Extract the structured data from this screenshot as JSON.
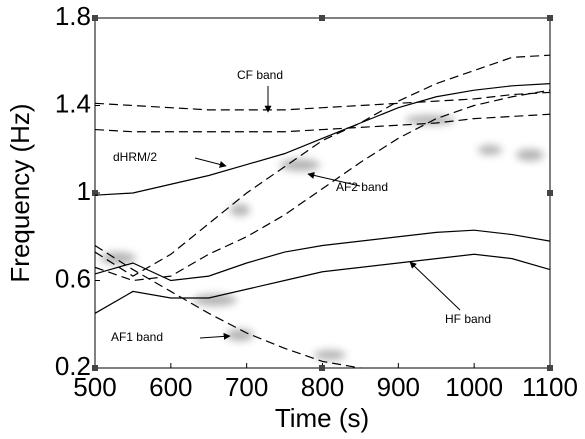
{
  "chart_data": {
    "type": "line",
    "xlabel": "Time (s)",
    "ylabel": "Frequency (Hz)",
    "xlim": [
      500,
      1100
    ],
    "xticks": [
      500,
      600,
      700,
      800,
      900,
      1000,
      1100
    ],
    "ylim": [
      0.2,
      1.8
    ],
    "yticks": [
      0.2,
      0.6,
      1,
      1.4,
      1.8
    ],
    "x": [
      500,
      550,
      600,
      650,
      700,
      750,
      800,
      850,
      900,
      950,
      1000,
      1050,
      1100
    ],
    "series": [
      {
        "color": "#000000",
        "dashed": true,
        "values": [
          1.41,
          1.4,
          1.39,
          1.38,
          1.38,
          1.38,
          1.39,
          1.4,
          1.41,
          1.42,
          1.43,
          1.45,
          1.46
        ]
      },
      {
        "color": "#000000",
        "dashed": true,
        "values": [
          1.29,
          1.28,
          1.28,
          1.28,
          1.28,
          1.28,
          1.29,
          1.3,
          1.31,
          1.32,
          1.34,
          1.35,
          1.36
        ]
      },
      {
        "color": "#000000",
        "dashed": false,
        "values": [
          0.99,
          1.0,
          1.04,
          1.08,
          1.13,
          1.18,
          1.25,
          1.32,
          1.39,
          1.44,
          1.47,
          1.49,
          1.5
        ]
      },
      {
        "color": "#000000",
        "dashed": true,
        "values": [
          0.73,
          0.62,
          0.72,
          0.86,
          1.0,
          1.12,
          1.24,
          1.32,
          1.42,
          1.5,
          1.56,
          1.62,
          1.63
        ]
      },
      {
        "color": "#000000",
        "dashed": true,
        "values": [
          0.66,
          0.6,
          0.62,
          0.72,
          0.8,
          0.9,
          1.02,
          1.14,
          1.25,
          1.34,
          1.4,
          1.44,
          1.47
        ]
      },
      {
        "color": "#000000",
        "dashed": false,
        "values": [
          0.63,
          0.68,
          0.6,
          0.62,
          0.68,
          0.73,
          0.76,
          0.78,
          0.8,
          0.82,
          0.83,
          0.81,
          0.78
        ]
      },
      {
        "color": "#000000",
        "dashed": false,
        "values": [
          0.45,
          0.55,
          0.52,
          0.52,
          0.56,
          0.6,
          0.64,
          0.66,
          0.68,
          0.7,
          0.72,
          0.7,
          0.65
        ]
      },
      {
        "color": "#000000",
        "dashed": true,
        "values": [
          0.76,
          0.65,
          0.55,
          0.45,
          0.36,
          0.29,
          0.23,
          0.2,
          null,
          null,
          null,
          null,
          null
        ]
      }
    ],
    "annotations": [
      "CF band",
      "dHRM/2",
      "AF2 band",
      "HF band",
      "AF1 band"
    ]
  }
}
